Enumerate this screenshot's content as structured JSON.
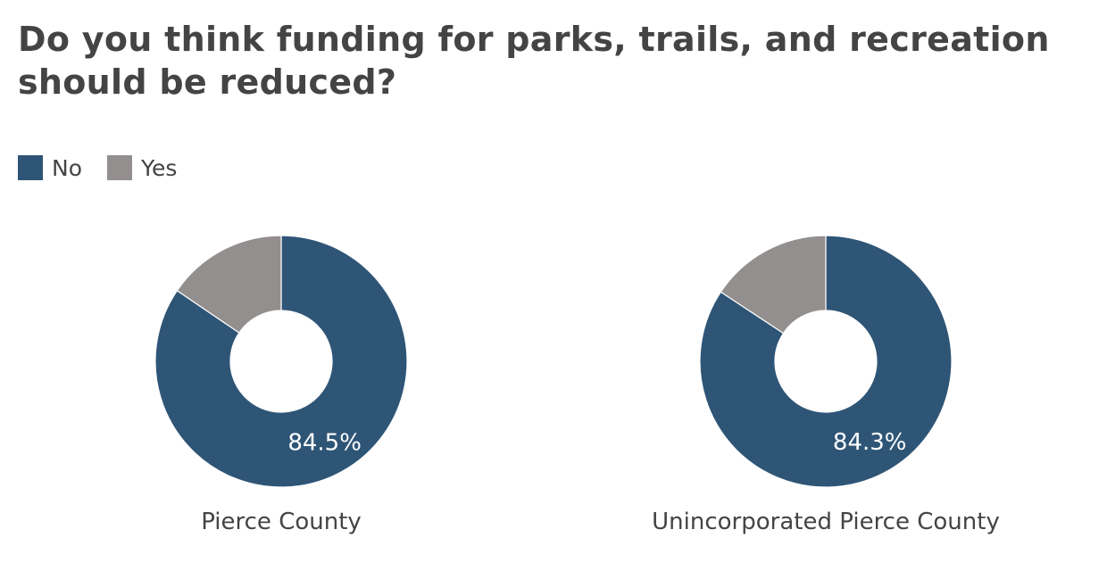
{
  "chart_data": {
    "type": "pie",
    "title": "Do you think funding for parks, trails, and recreation should be reduced?",
    "legend": {
      "placement": "top-left",
      "entries": [
        {
          "label": "No",
          "color": "#2e5576"
        },
        {
          "label": "Yes",
          "color": "#938f8e"
        }
      ]
    },
    "charts": [
      {
        "label": "Pierce County",
        "slices": [
          {
            "name": "No",
            "value": 84.5,
            "display": "84.5%"
          },
          {
            "name": "Yes",
            "value": 15.5
          }
        ]
      },
      {
        "label": "Unincorporated Pierce County",
        "slices": [
          {
            "name": "No",
            "value": 84.3,
            "display": "84.3%"
          },
          {
            "name": "Yes",
            "value": 15.7
          }
        ]
      }
    ]
  }
}
